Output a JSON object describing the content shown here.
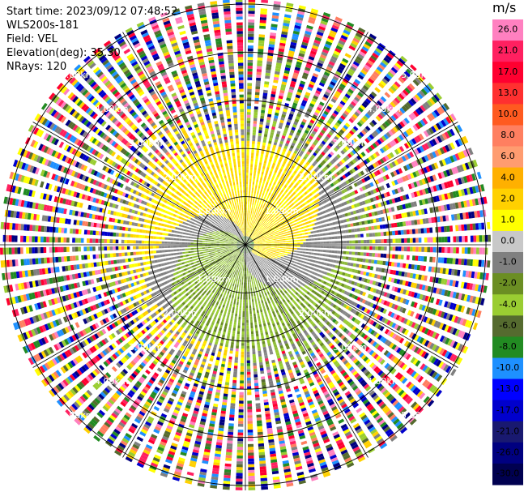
{
  "info": {
    "start_time": "Start time: 2023/09/12 07:48:52",
    "site": "WLS200s-181",
    "field": "Field: VEL",
    "elevation": "Elevation(deg): 35.30",
    "nrays": "NRays: 120"
  },
  "chart_data": {
    "type": "heatmap",
    "subtype": "polar-ppi",
    "field": "VEL",
    "units": "m/s",
    "nrays": 120,
    "elevation_deg": 35.3,
    "max_range_km": 5.1,
    "range_ring_labels": [
      "1.00km",
      "2.00km",
      "3.00km",
      "4.00km",
      "5.00km"
    ],
    "range_rings_km": [
      1,
      2,
      3,
      4,
      5
    ],
    "spoke_angles_deg": [
      0,
      30,
      60,
      90,
      120,
      150,
      180,
      210,
      240,
      270,
      300,
      330
    ],
    "colorbar": {
      "title": "m/s",
      "ticks": [
        "26.0",
        "21.0",
        "17.0",
        "13.0",
        "10.0",
        "8.0",
        "6.0",
        "4.0",
        "2.0",
        "1.0",
        "0.0",
        "-1.0",
        "-2.0",
        "-4.0",
        "-6.0",
        "-8.0",
        "-10.0",
        "-13.0",
        "-17.0",
        "-21.0",
        "-26.0",
        "-30.0"
      ],
      "colors": [
        "#ff80c0",
        "#ff2060",
        "#ff0030",
        "#ff3030",
        "#ff5a20",
        "#ff7f60",
        "#ff9c70",
        "#ffb000",
        "#ffd000",
        "#ffff00",
        "#c8c8c8",
        "#808080",
        "#6b8e23",
        "#9acd32",
        "#556b2f",
        "#228b22",
        "#1e90ff",
        "#0000ff",
        "#0000cd",
        "#191970",
        "#000080",
        "#000050"
      ]
    },
    "legend_placement": "right"
  }
}
